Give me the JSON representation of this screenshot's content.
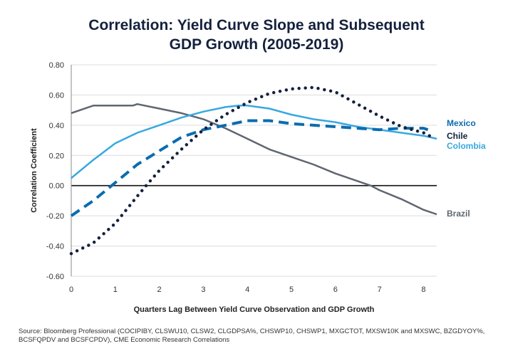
{
  "title_line1": "Correlation: Yield Curve Slope and Subsequent",
  "title_line2": "GDP Growth (2005-2019)",
  "source": "Source: Bloomberg Professional (COCIPIBY, CLSWU10, CLSW2, CLGDPSA%, CHSWP10, CHSWP1, MXGCTOT, MXSW10K and MXSWC, BZGDYOY%, BCSFQPDV and BCSFCPDV), CME Economic Research Correlations",
  "chart_data": {
    "type": "line",
    "title": "Correlation: Yield Curve Slope and Subsequent GDP Growth (2005-2019)",
    "xlabel": "Quarters Lag Between Yield Curve Observation and GDP Growth",
    "ylabel": "Correlation Coefficient",
    "xlim": [
      0,
      8.3
    ],
    "ylim": [
      -0.6,
      0.8
    ],
    "xticks": [
      "0",
      "1",
      "2",
      "3",
      "4",
      "5",
      "6",
      "7",
      "8"
    ],
    "yticks": [
      "0.80",
      "0.60",
      "0.40",
      "0.20",
      "0.00",
      "-0.20",
      "-0.40",
      "-0.60"
    ],
    "grid": true,
    "legend": "right, labels at line ends",
    "series": [
      {
        "name": "Brazil",
        "color": "#5f6670",
        "style": "solid",
        "x": [
          0,
          0.5,
          1,
          1.4,
          1.5,
          2,
          2.5,
          3,
          3.5,
          4,
          4.5,
          5,
          5.5,
          6,
          6.5,
          6.8,
          7,
          7.5,
          8,
          8.3
        ],
        "y": [
          0.48,
          0.53,
          0.53,
          0.53,
          0.54,
          0.51,
          0.48,
          0.44,
          0.38,
          0.31,
          0.24,
          0.19,
          0.14,
          0.08,
          0.03,
          0.0,
          -0.03,
          -0.09,
          -0.16,
          -0.19
        ]
      },
      {
        "name": "Colombia",
        "color": "#38a8e0",
        "style": "solid",
        "x": [
          0,
          0.5,
          1,
          1.5,
          2,
          2.5,
          3,
          3.5,
          3.8,
          4,
          4.5,
          5,
          5.5,
          6,
          6.5,
          7,
          7.5,
          8,
          8.3
        ],
        "y": [
          0.05,
          0.17,
          0.28,
          0.35,
          0.4,
          0.45,
          0.49,
          0.52,
          0.53,
          0.53,
          0.51,
          0.47,
          0.44,
          0.42,
          0.39,
          0.37,
          0.35,
          0.33,
          0.31
        ]
      },
      {
        "name": "Mexico",
        "color": "#0a6cb0",
        "style": "dashed",
        "x": [
          0,
          0.5,
          1,
          1.5,
          2,
          2.5,
          3,
          3.5,
          4,
          4.5,
          5,
          5.5,
          6,
          6.5,
          7,
          7.5,
          8,
          8.1
        ],
        "y": [
          -0.2,
          -0.1,
          0.02,
          0.14,
          0.23,
          0.32,
          0.37,
          0.4,
          0.43,
          0.43,
          0.41,
          0.4,
          0.39,
          0.38,
          0.37,
          0.38,
          0.38,
          0.37
        ]
      },
      {
        "name": "Chile",
        "color": "#14213d",
        "style": "dotted",
        "x": [
          0,
          0.5,
          1,
          1.5,
          1.7,
          2,
          2.5,
          3,
          3.5,
          4,
          4.5,
          5,
          5.5,
          6,
          6.5,
          7,
          7.5,
          8,
          8.2
        ],
        "y": [
          -0.45,
          -0.38,
          -0.25,
          -0.07,
          0,
          0.1,
          0.24,
          0.37,
          0.47,
          0.55,
          0.61,
          0.64,
          0.65,
          0.62,
          0.54,
          0.46,
          0.39,
          0.35,
          0.32
        ]
      }
    ]
  }
}
